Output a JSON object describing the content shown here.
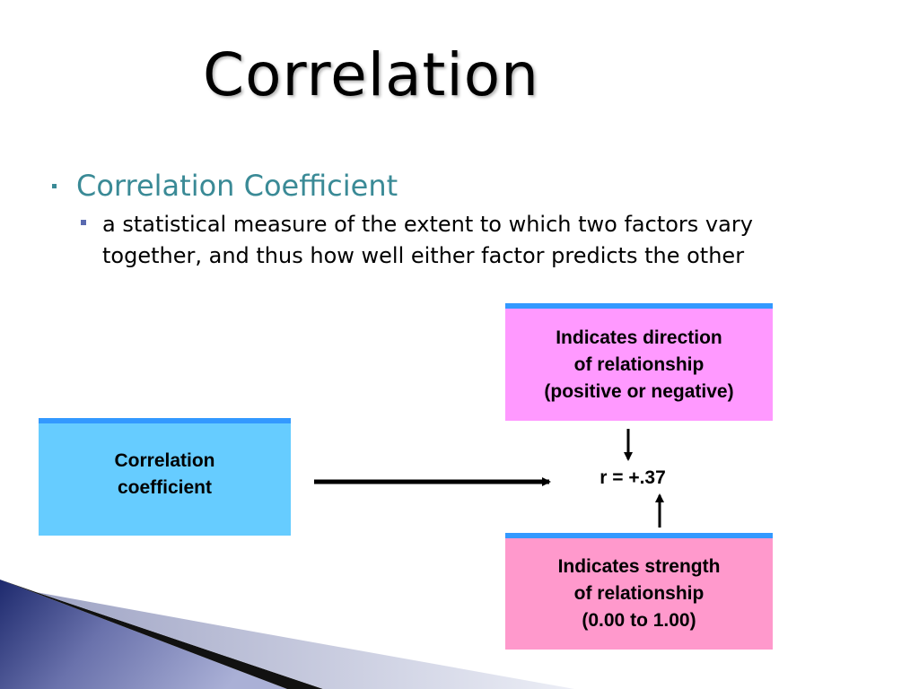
{
  "slide": {
    "title": "Correlation",
    "bullets": [
      {
        "text": "Correlation Coefficient",
        "sub": [
          "a statistical measure of the extent to which two factors vary together, and thus how well either factor predicts the other"
        ]
      }
    ]
  },
  "diagram": {
    "source_box": "Correlation\ncoefficient",
    "direction_box": "Indicates direction\nof relationship\n(positive or negative)",
    "strength_box": "Indicates strength\nof relationship\n(0.00 to 1.00)",
    "r_value": "r = +.37"
  },
  "colors": {
    "accent_teal": "#3a8a96",
    "box_blue": "#66ccff",
    "box_magenta": "#ff99ff",
    "box_pink": "#ff99cc",
    "box_border": "#3399ff",
    "corner_navy": "#2d3a7c"
  }
}
